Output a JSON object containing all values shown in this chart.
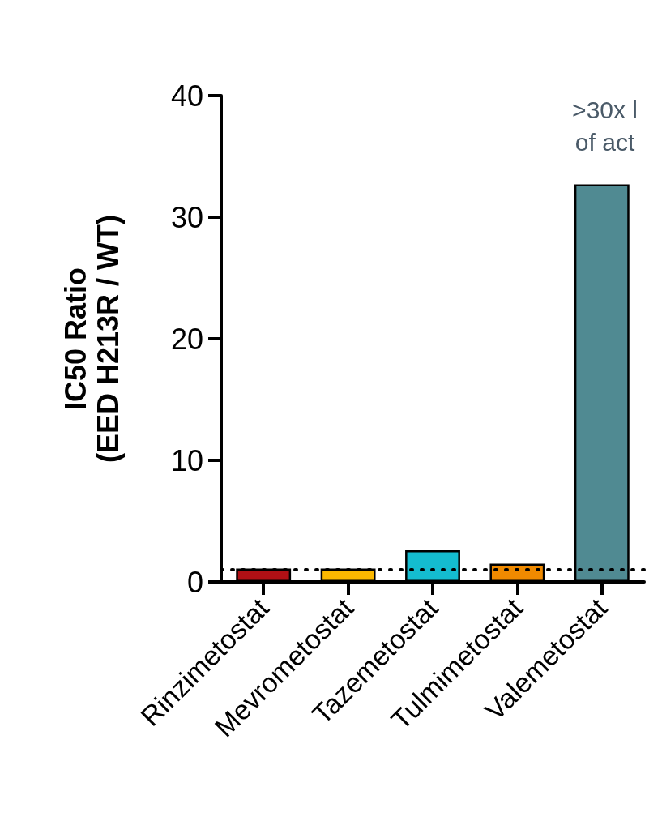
{
  "chart_data": {
    "type": "bar",
    "ylabel": "IC50 Ratio\n(EED H213R / WT)",
    "categories": [
      "Rinzimetostat",
      "Mevrometostat",
      "Tazemetostat",
      "Tulmimetostat",
      "Valemetostat"
    ],
    "values": [
      1.1,
      1.1,
      2.6,
      1.5,
      32.7
    ],
    "colors": [
      "#b01015",
      "#fbb800",
      "#14bcd0",
      "#f08a00",
      "#508a92"
    ],
    "ylim": [
      0,
      40
    ],
    "yticks": [
      0,
      10,
      20,
      30,
      40
    ],
    "grid": false,
    "ref_lines": [
      {
        "axis": "y",
        "value": 1,
        "color": "#000000",
        "line_style": "dotted"
      }
    ],
    "annotations": [
      ">30x l\nof act"
    ]
  }
}
